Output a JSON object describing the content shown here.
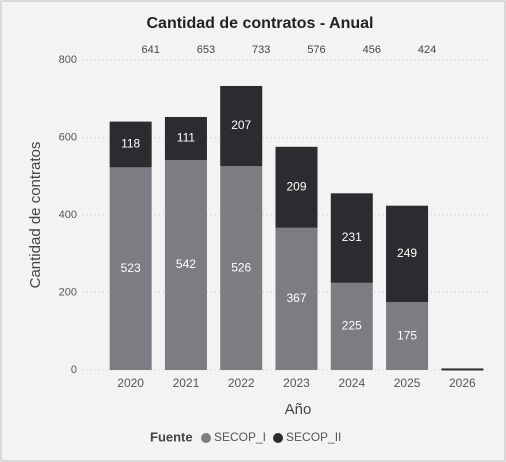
{
  "chart_data": {
    "type": "stacked_bar",
    "title": "Cantidad de contratos - Anual",
    "xlabel": "Año",
    "ylabel": "Cantidad de contratos",
    "legend_title": "Fuente",
    "categories": [
      "2020",
      "2021",
      "2022",
      "2023",
      "2024",
      "2025",
      "2026"
    ],
    "series": [
      {
        "name": "SECOP_I",
        "color": "#7d7c83",
        "values": [
          523,
          542,
          526,
          367,
          225,
          175,
          0
        ]
      },
      {
        "name": "SECOP_II",
        "color": "#2c2c30",
        "values": [
          118,
          111,
          207,
          209,
          231,
          249,
          4
        ]
      }
    ],
    "totals": [
      641,
      653,
      733,
      576,
      456,
      424,
      null
    ],
    "ylim": [
      0,
      800
    ],
    "yticks": [
      0,
      200,
      400,
      600,
      800
    ],
    "grid": true
  }
}
